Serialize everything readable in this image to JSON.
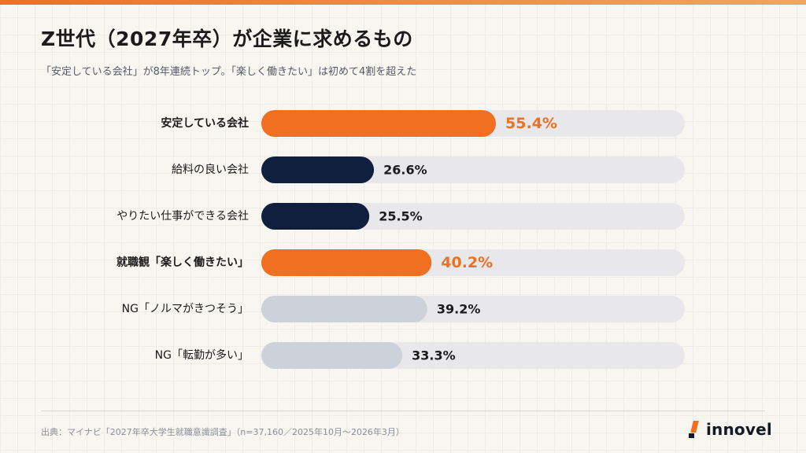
{
  "header": {
    "title": "Z世代（2027年卒）が企業に求めるもの",
    "subtitle": "「安定している会社」が8年連続トップ。「楽しく働きたい」は初めて4割を超えた"
  },
  "footer": {
    "source": "出典：マイナビ「2027年卒大学生就職意識調査」（n=37,160／2025年10月〜2026年3月）",
    "logo": "innovel"
  },
  "colors": {
    "accent": "#f07020",
    "navy": "#0f1f3d",
    "gray": "#cdd1d9",
    "track": "#e8e8ea"
  },
  "chart_data": {
    "type": "bar",
    "orientation": "horizontal",
    "xlim": [
      0,
      100
    ],
    "categories": [
      "安定している会社",
      "給料の良い会社",
      "やりたい仕事ができる会社",
      "就職観「楽しく働きたい」",
      "NG「ノルマがきつそう」",
      "NG「転勤が多い」"
    ],
    "values": [
      55.4,
      26.6,
      25.5,
      40.2,
      39.2,
      33.3
    ],
    "value_labels": [
      "55.4%",
      "26.6%",
      "25.5%",
      "40.2%",
      "39.2%",
      "33.3%"
    ],
    "highlighted": [
      true,
      false,
      false,
      true,
      false,
      false
    ],
    "bar_colors": [
      "#f07020",
      "#0f1f3d",
      "#0f1f3d",
      "#f07020",
      "#cdd1d9",
      "#cdd1d9"
    ]
  }
}
